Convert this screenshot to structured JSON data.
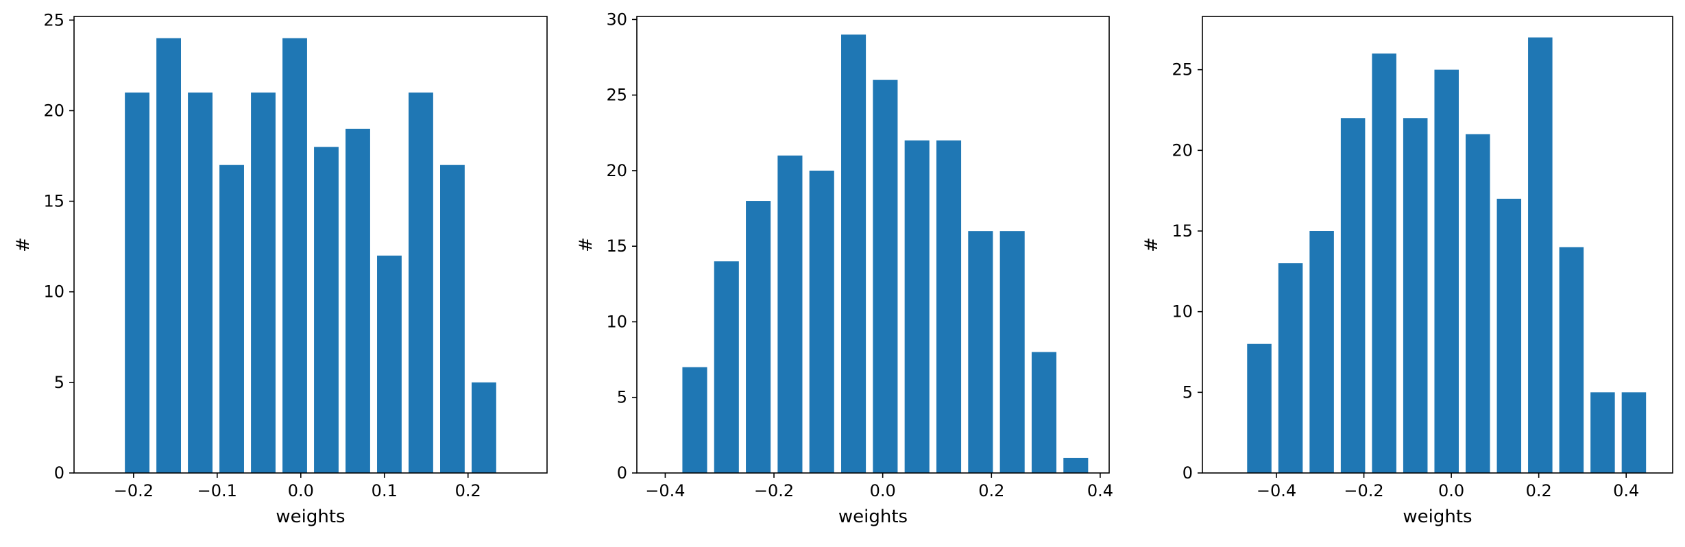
{
  "chart_data": [
    {
      "type": "bar",
      "xlabel": "weights",
      "ylabel": "#",
      "xlim": [
        -0.2712,
        0.2945
      ],
      "ylim": [
        0,
        25.2
      ],
      "x_ticks": [
        -0.2,
        -0.1,
        0.0,
        0.1,
        0.2
      ],
      "x_tick_labels": [
        "−0.2",
        "−0.1",
        "0.0",
        "0.1",
        "0.2"
      ],
      "y_ticks": [
        0,
        5,
        10,
        15,
        20,
        25
      ],
      "y_tick_labels": [
        "0",
        "5",
        "10",
        "15",
        "20",
        "25"
      ],
      "bar_width": 0.0294,
      "x": [
        -0.1957,
        -0.158,
        -0.1203,
        -0.0826,
        -0.0449,
        -0.0072,
        0.0305,
        0.0682,
        0.1059,
        0.1436,
        0.1813,
        0.219
      ],
      "values": [
        21,
        24,
        21,
        17,
        21,
        24,
        18,
        19,
        12,
        21,
        17,
        5
      ],
      "color": "#1f77b4",
      "grid": false
    },
    {
      "type": "bar",
      "xlabel": "weights",
      "ylabel": "#",
      "xlim": [
        -0.4522,
        0.4165
      ],
      "ylim": [
        0,
        30.2
      ],
      "x_ticks": [
        -0.4,
        -0.2,
        0.0,
        0.2,
        0.4
      ],
      "x_tick_labels": [
        "−0.4",
        "−0.2",
        "0.0",
        "0.2",
        "0.4"
      ],
      "y_ticks": [
        0,
        5,
        10,
        15,
        20,
        25,
        30
      ],
      "y_tick_labels": [
        "0",
        "5",
        "10",
        "15",
        "20",
        "25",
        "30"
      ],
      "bar_width": 0.0455,
      "x": [
        -0.3457,
        -0.2873,
        -0.2289,
        -0.1705,
        -0.1121,
        -0.0537,
        0.0047,
        0.0631,
        0.1215,
        0.1799,
        0.2383,
        0.2967,
        0.3551
      ],
      "values": [
        7,
        14,
        18,
        21,
        20,
        29,
        26,
        22,
        22,
        16,
        16,
        8,
        1
      ],
      "color": "#1f77b4",
      "grid": false
    },
    {
      "type": "bar",
      "xlabel": "weights",
      "ylabel": "#",
      "xlim": [
        -0.5694,
        0.5063
      ],
      "ylim": [
        0,
        28.3
      ],
      "x_ticks": [
        -0.4,
        -0.2,
        0.0,
        0.2,
        0.4
      ],
      "x_tick_labels": [
        "−0.4",
        "−0.2",
        "0.0",
        "0.2",
        "0.4"
      ],
      "y_ticks": [
        0,
        5,
        10,
        15,
        20,
        25
      ],
      "y_tick_labels": [
        "0",
        "5",
        "10",
        "15",
        "20",
        "25"
      ],
      "bar_width": 0.0557,
      "x": [
        -0.4392,
        -0.3678,
        -0.2964,
        -0.225,
        -0.1536,
        -0.0822,
        -0.0108,
        0.0606,
        0.132,
        0.2034,
        0.2748,
        0.3462,
        0.4176
      ],
      "values": [
        8,
        13,
        15,
        22,
        26,
        22,
        25,
        21,
        17,
        27,
        14,
        5,
        5
      ],
      "color": "#1f77b4",
      "grid": false
    }
  ]
}
